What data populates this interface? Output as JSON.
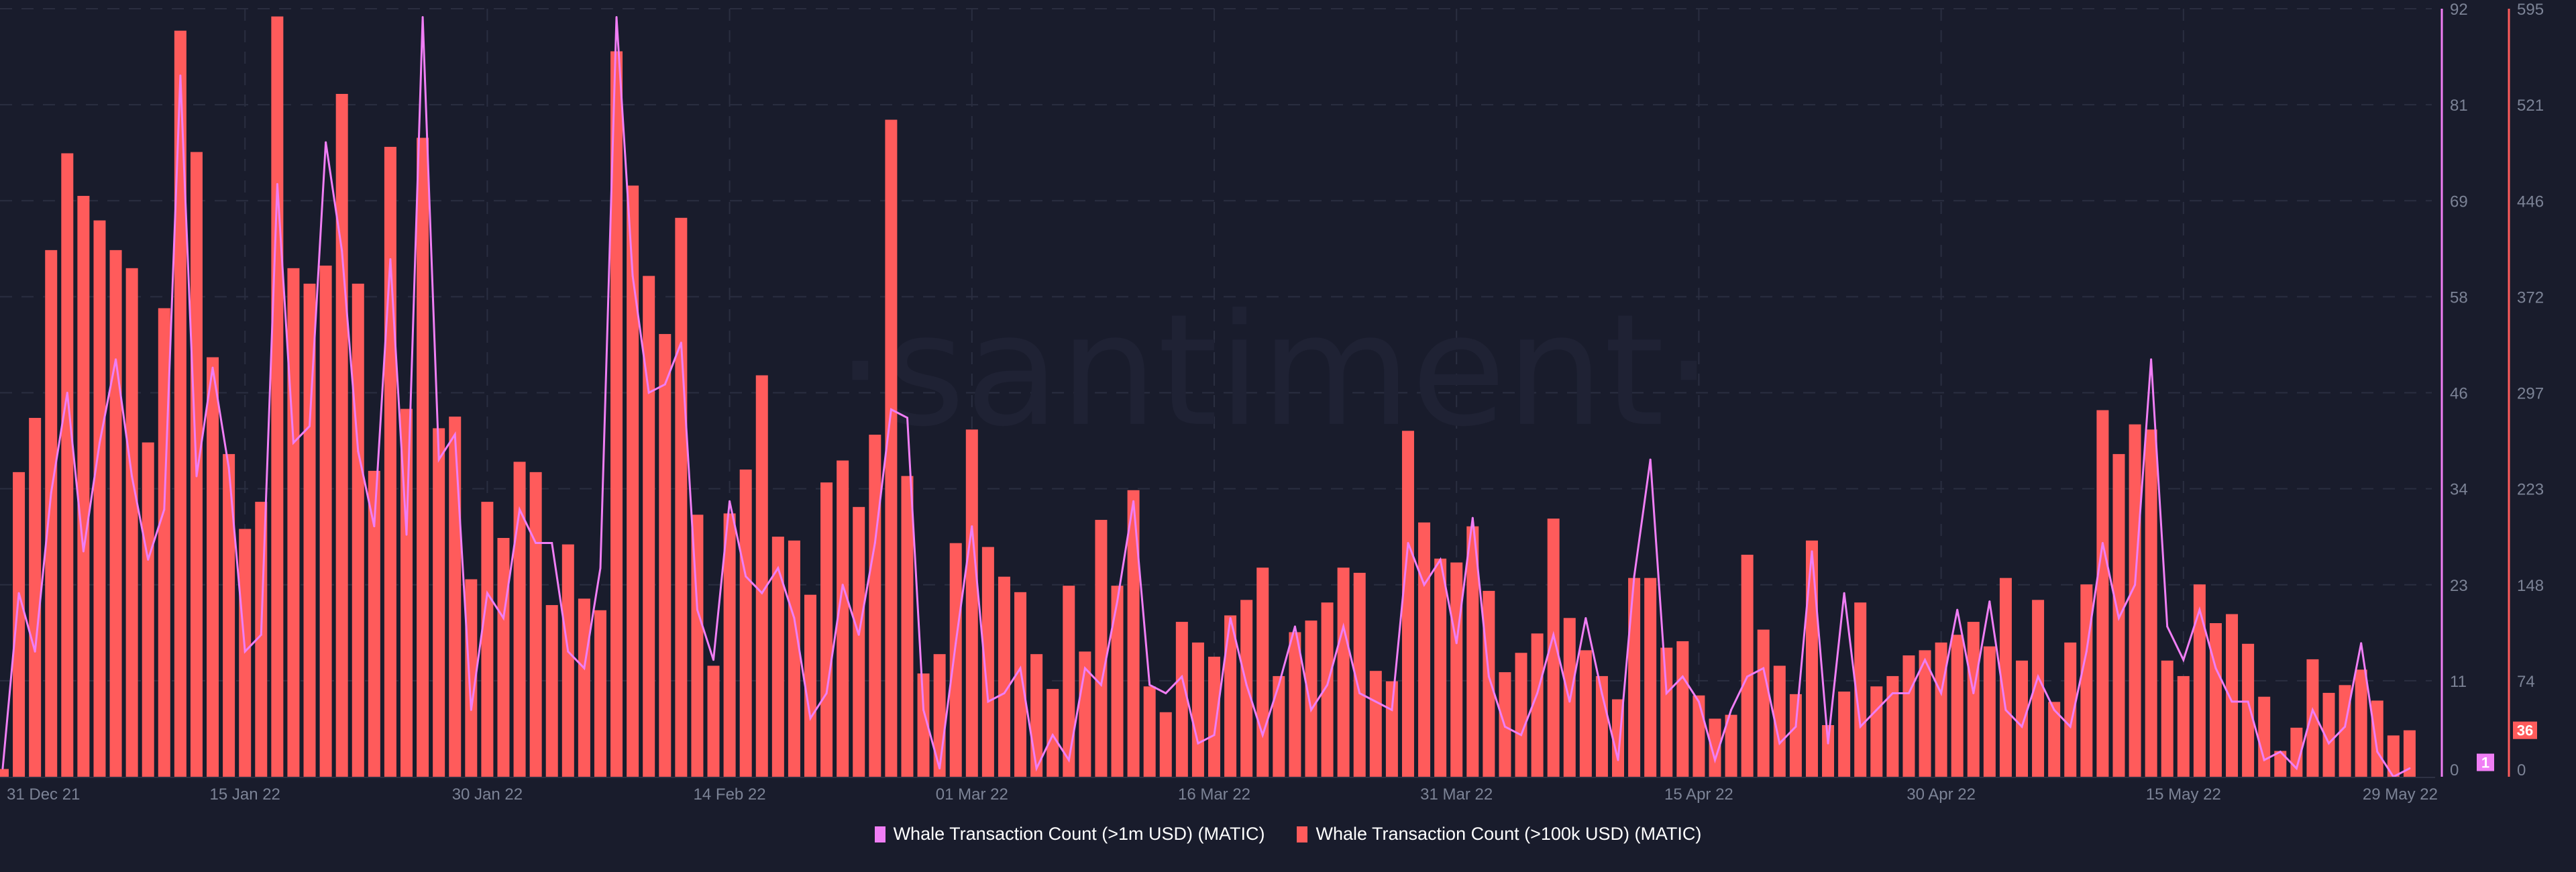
{
  "watermark": "·santiment·",
  "colors": {
    "background": "#191c2c",
    "bars": "#ff5b5b",
    "line": "#f07ef5",
    "grid": "#2a2e40",
    "tick": "#7c8396"
  },
  "chart_data": {
    "type": "bar+line",
    "x_start": "2021-12-31",
    "x_end": "2022-05-29",
    "x_interval": "1 day",
    "x_tick_labels": [
      "31 Dec 21",
      "15 Jan 22",
      "30 Jan 22",
      "14 Feb 22",
      "01 Mar 22",
      "16 Mar 22",
      "31 Mar 22",
      "15 Apr 22",
      "30 Apr 22",
      "15 May 22",
      "29 May 22"
    ],
    "grid": true,
    "legend_placement": "bottom",
    "series": [
      {
        "name": "Whale Transaction Count (>1m USD) (MATIC)",
        "type": "line",
        "axis": "right-inner",
        "color": "#f07ef5",
        "ylim": [
          0,
          92
        ],
        "y_ticks": [
          "0",
          "11",
          "23",
          "34",
          "46",
          "58",
          "69",
          "81",
          "92"
        ],
        "last_value": "1",
        "values": [
          1,
          22,
          15,
          34,
          46,
          27,
          40,
          50,
          36,
          26,
          32,
          84,
          36,
          49,
          37,
          15,
          17,
          71,
          40,
          42,
          76,
          63,
          39,
          30,
          62,
          29,
          91,
          38,
          41,
          8,
          22,
          19,
          32,
          28,
          28,
          15,
          13,
          25,
          91,
          60,
          46,
          47,
          52,
          20,
          14,
          33,
          24,
          22,
          25,
          19,
          7,
          10,
          23,
          17,
          28,
          44,
          43,
          8,
          1,
          16,
          30,
          9,
          10,
          13,
          1,
          5,
          2,
          13,
          11,
          21,
          33,
          11,
          10,
          12,
          4,
          5,
          19,
          11,
          5,
          11,
          18,
          8,
          11,
          18,
          10,
          9,
          8,
          28,
          23,
          26,
          16,
          31,
          12,
          6,
          5,
          10,
          17,
          9,
          19,
          10,
          2,
          24,
          38,
          10,
          12,
          9,
          2,
          8,
          12,
          13,
          4,
          6,
          27,
          4,
          22,
          6,
          8,
          10,
          10,
          14,
          10,
          20,
          10,
          21,
          8,
          6,
          12,
          8,
          6,
          15,
          28,
          19,
          23,
          50,
          18,
          14,
          20,
          13,
          9,
          9,
          2,
          3,
          1,
          8,
          4,
          6,
          16,
          3,
          0,
          1
        ]
      },
      {
        "name": "Whale Transaction Count (>100k USD) (MATIC)",
        "type": "bar",
        "axis": "right-outer",
        "color": "#ff5b5b",
        "ylim": [
          0,
          595
        ],
        "y_ticks": [
          "0",
          "74",
          "148",
          "223",
          "297",
          "372",
          "446",
          "521",
          "595"
        ],
        "last_value": "36",
        "values": [
          6,
          236,
          278,
          408,
          483,
          450,
          431,
          408,
          394,
          259,
          363,
          578,
          484,
          325,
          250,
          192,
          213,
          589,
          394,
          382,
          396,
          529,
          382,
          237,
          488,
          285,
          495,
          270,
          279,
          153,
          213,
          185,
          244,
          236,
          133,
          180,
          138,
          129,
          562,
          458,
          388,
          343,
          433,
          203,
          86,
          204,
          238,
          311,
          186,
          183,
          141,
          228,
          245,
          209,
          265,
          509,
          233,
          80,
          95,
          181,
          269,
          178,
          155,
          143,
          95,
          68,
          148,
          97,
          199,
          148,
          222,
          70,
          50,
          120,
          104,
          93,
          125,
          137,
          162,
          78,
          112,
          121,
          135,
          162,
          158,
          82,
          74,
          268,
          197,
          169,
          166,
          194,
          144,
          81,
          96,
          111,
          200,
          123,
          98,
          78,
          60,
          154,
          154,
          100,
          105,
          63,
          45,
          48,
          172,
          114,
          86,
          64,
          183,
          40,
          66,
          135,
          70,
          78,
          94,
          98,
          104,
          110,
          120,
          101,
          154,
          90,
          137,
          58,
          104,
          149,
          284,
          250,
          273,
          269,
          90,
          78,
          149,
          119,
          126,
          103,
          62,
          20,
          38,
          91,
          65,
          71,
          83,
          59,
          32,
          36
        ]
      }
    ]
  },
  "legend": [
    {
      "label": "Whale Transaction Count (>1m USD) (MATIC)",
      "color": "#f07ef5"
    },
    {
      "label": "Whale Transaction Count (>100k USD) (MATIC)",
      "color": "#ff5b5b"
    }
  ]
}
